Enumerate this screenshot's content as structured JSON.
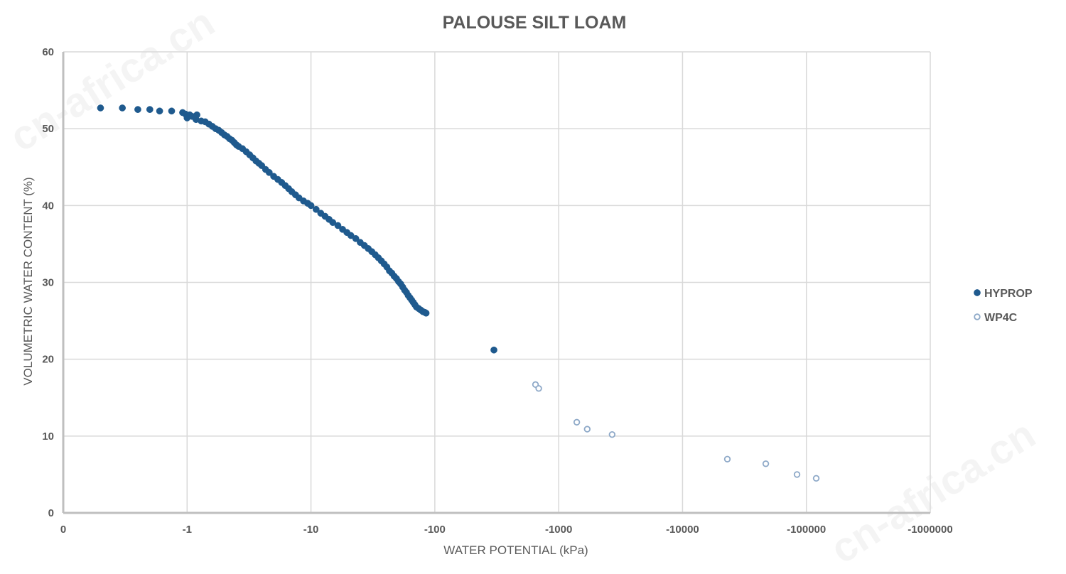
{
  "watermark": "cn-africa.cn",
  "chart_data": {
    "type": "scatter",
    "title": "PALOUSE SILT LOAM",
    "xlabel": "WATER POTENTIAL (kPa)",
    "ylabel": "VOLUMETRIC WATER CONTENT (%)",
    "x_scale": "log",
    "x_tick_labels": [
      "0",
      "-1",
      "-10",
      "-100",
      "-1000",
      "-10000",
      "-100000",
      "-1000000"
    ],
    "ylim": [
      0,
      60
    ],
    "y_ticks": [
      0,
      10,
      20,
      30,
      40,
      50,
      60
    ],
    "grid": true,
    "legend_position": "right",
    "series": [
      {
        "name": "HYPROP",
        "marker": "filled-circle",
        "color": "#1f5a8e",
        "points": [
          [
            -0.2,
            52.7
          ],
          [
            -0.3,
            52.7
          ],
          [
            -0.4,
            52.5
          ],
          [
            -0.5,
            52.5
          ],
          [
            -0.6,
            52.3
          ],
          [
            -0.75,
            52.3
          ],
          [
            -0.92,
            52.1
          ],
          [
            -0.97,
            51.9
          ],
          [
            -1.0,
            51.4
          ],
          [
            -1.05,
            51.8
          ],
          [
            -1.1,
            51.6
          ],
          [
            -1.18,
            51.2
          ],
          [
            -1.2,
            51.8
          ],
          [
            -1.3,
            51.0
          ],
          [
            -1.4,
            50.9
          ],
          [
            -1.5,
            50.6
          ],
          [
            -1.6,
            50.3
          ],
          [
            -1.7,
            50.0
          ],
          [
            -1.8,
            49.8
          ],
          [
            -1.9,
            49.5
          ],
          [
            -2.0,
            49.2
          ],
          [
            -2.1,
            49.0
          ],
          [
            -2.2,
            48.7
          ],
          [
            -2.3,
            48.5
          ],
          [
            -2.4,
            48.2
          ],
          [
            -2.5,
            47.9
          ],
          [
            -2.6,
            47.7
          ],
          [
            -2.8,
            47.4
          ],
          [
            -3.0,
            47.0
          ],
          [
            -3.2,
            46.6
          ],
          [
            -3.4,
            46.2
          ],
          [
            -3.6,
            45.8
          ],
          [
            -3.8,
            45.5
          ],
          [
            -4.0,
            45.2
          ],
          [
            -4.3,
            44.7
          ],
          [
            -4.6,
            44.3
          ],
          [
            -5.0,
            43.8
          ],
          [
            -5.4,
            43.4
          ],
          [
            -5.8,
            43.0
          ],
          [
            -6.2,
            42.6
          ],
          [
            -6.6,
            42.2
          ],
          [
            -7.0,
            41.8
          ],
          [
            -7.5,
            41.4
          ],
          [
            -8.0,
            41.0
          ],
          [
            -8.7,
            40.6
          ],
          [
            -9.4,
            40.3
          ],
          [
            -10,
            40.0
          ],
          [
            -11,
            39.5
          ],
          [
            -12,
            39.0
          ],
          [
            -13,
            38.6
          ],
          [
            -14,
            38.2
          ],
          [
            -15,
            37.8
          ],
          [
            -16.5,
            37.4
          ],
          [
            -18,
            36.9
          ],
          [
            -19.5,
            36.5
          ],
          [
            -21,
            36.1
          ],
          [
            -23,
            35.7
          ],
          [
            -25,
            35.2
          ],
          [
            -27,
            34.8
          ],
          [
            -29,
            34.4
          ],
          [
            -31,
            34.0
          ],
          [
            -33,
            33.6
          ],
          [
            -35,
            33.2
          ],
          [
            -37,
            32.8
          ],
          [
            -39,
            32.4
          ],
          [
            -41,
            32.0
          ],
          [
            -43,
            31.5
          ],
          [
            -45,
            31.2
          ],
          [
            -47,
            30.8
          ],
          [
            -49,
            30.5
          ],
          [
            -51,
            30.1
          ],
          [
            -53,
            29.8
          ],
          [
            -55,
            29.4
          ],
          [
            -57,
            29.0
          ],
          [
            -59,
            28.7
          ],
          [
            -61,
            28.3
          ],
          [
            -63,
            28.0
          ],
          [
            -65,
            27.7
          ],
          [
            -67,
            27.4
          ],
          [
            -69,
            27.1
          ],
          [
            -71,
            26.8
          ],
          [
            -74,
            26.6
          ],
          [
            -77,
            26.4
          ],
          [
            -80,
            26.2
          ],
          [
            -83,
            26.1
          ],
          [
            -85,
            26.0
          ],
          [
            -300,
            21.2
          ]
        ]
      },
      {
        "name": "WP4C",
        "marker": "open-circle",
        "color": "#8ea9c8",
        "points": [
          [
            -650,
            16.7
          ],
          [
            -690,
            16.2
          ],
          [
            -1400,
            11.8
          ],
          [
            -1700,
            10.9
          ],
          [
            -2700,
            10.2
          ],
          [
            -23000,
            7.0
          ],
          [
            -47000,
            6.4
          ],
          [
            -84000,
            5.0
          ],
          [
            -120000,
            4.5
          ]
        ]
      }
    ]
  }
}
